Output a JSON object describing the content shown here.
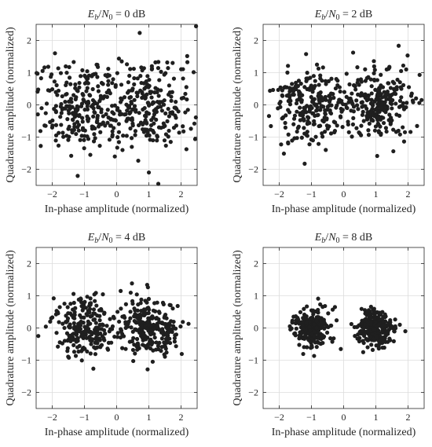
{
  "chart_data": [
    {
      "type": "scatter",
      "title": "E_b/N_0 = 0 dB",
      "title_parts": {
        "e": "E",
        "b": "b",
        "slash": "/",
        "n": "N",
        "zero": "0",
        "rest": " = 0 dB"
      },
      "xlabel": "In-phase amplitude (normalized)",
      "ylabel": "Quadrature amplitude (normalized)",
      "xlim": [
        -2.5,
        2.5
      ],
      "ylim": [
        -2.5,
        2.5
      ],
      "xticks": [
        -2,
        -1,
        0,
        1,
        2
      ],
      "yticks": [
        -2,
        -1,
        0,
        1,
        2
      ],
      "grid": true,
      "sigma": 0.707,
      "point_count": 500,
      "seed": 11
    },
    {
      "type": "scatter",
      "title": "E_b/N_0 = 2 dB",
      "title_parts": {
        "e": "E",
        "b": "b",
        "slash": "/",
        "n": "N",
        "zero": "0",
        "rest": " = 2 dB"
      },
      "xlabel": "In-phase amplitude (normalized)",
      "ylabel": "Quadrature amplitude (normalized)",
      "xlim": [
        -2.5,
        2.5
      ],
      "ylim": [
        -2.5,
        2.5
      ],
      "xticks": [
        -2,
        -1,
        0,
        1,
        2
      ],
      "yticks": [
        -2,
        -1,
        0,
        1,
        2
      ],
      "grid": true,
      "sigma": 0.56,
      "point_count": 500,
      "seed": 23
    },
    {
      "type": "scatter",
      "title": "E_b/N_0 = 4 dB",
      "title_parts": {
        "e": "E",
        "b": "b",
        "slash": "/",
        "n": "N",
        "zero": "0",
        "rest": " = 4 dB"
      },
      "xlabel": "In-phase amplitude (normalized)",
      "ylabel": "Quadrature amplitude (normalized)",
      "xlim": [
        -2.5,
        2.5
      ],
      "ylim": [
        -2.5,
        2.5
      ],
      "xticks": [
        -2,
        -1,
        0,
        1,
        2
      ],
      "yticks": [
        -2,
        -1,
        0,
        1,
        2
      ],
      "grid": true,
      "sigma": 0.446,
      "point_count": 500,
      "seed": 37
    },
    {
      "type": "scatter",
      "title": "E_b/N_0 = 8 dB",
      "title_parts": {
        "e": "E",
        "b": "b",
        "slash": "/",
        "n": "N",
        "zero": "0",
        "rest": " = 8 dB"
      },
      "xlabel": "In-phase amplitude (normalized)",
      "ylabel": "Quadrature amplitude (normalized)",
      "xlim": [
        -2.5,
        2.5
      ],
      "ylim": [
        -2.5,
        2.5
      ],
      "xticks": [
        -2,
        -1,
        0,
        1,
        2
      ],
      "yticks": [
        -2,
        -1,
        0,
        1,
        2
      ],
      "grid": true,
      "sigma": 0.281,
      "point_count": 500,
      "seed": 53
    }
  ],
  "colors": {
    "marker": "#1f1f1f",
    "grid": "#dcdcdc",
    "axes": "#262626"
  }
}
